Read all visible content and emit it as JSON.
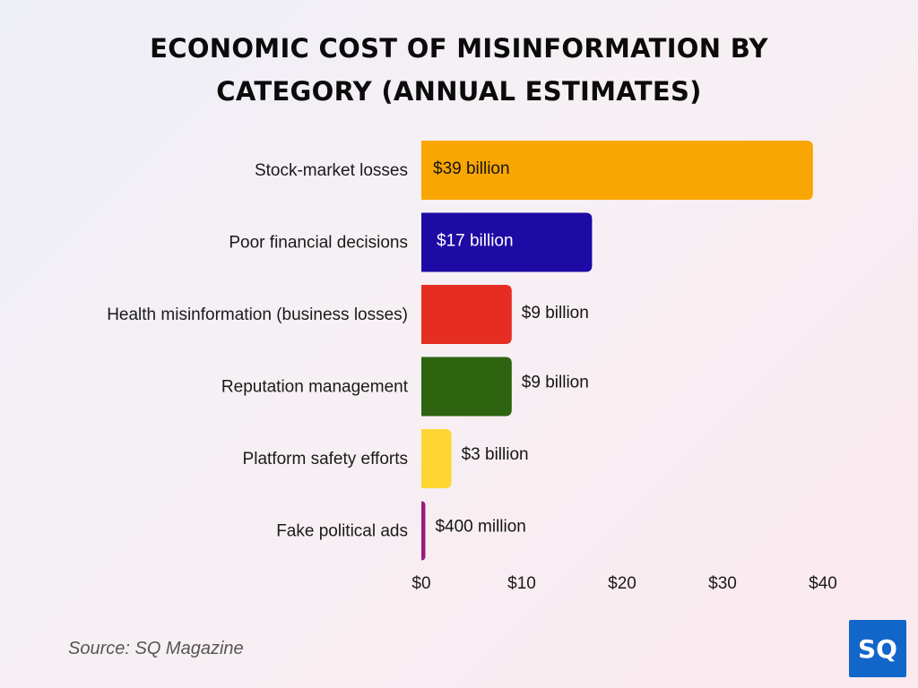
{
  "title": "ECONOMIC COST OF MISINFORMATION BY CATEGORY (ANNUAL ESTIMATES)",
  "source": "Source: SQ Magazine",
  "logo_text": "SQ",
  "colors": {
    "logo": "#1266c9"
  },
  "chart_data": {
    "type": "bar",
    "orientation": "horizontal",
    "categories": [
      "Stock-market losses",
      "Poor financial decisions",
      "Health misinformation (business losses)",
      "Reputation management",
      "Platform safety efforts",
      "Fake political ads"
    ],
    "values": [
      39,
      17,
      9,
      9,
      3,
      0.4
    ],
    "data_labels": [
      "$39 billion",
      "$17 billion",
      "$9 billion",
      "$9 billion",
      "$3 billion",
      "$400 million"
    ],
    "colors": [
      "#f9a602",
      "#1e0aa5",
      "#e52d22",
      "#2e6310",
      "#fdd631",
      "#9b1b7e"
    ],
    "label_inside": [
      true,
      true,
      false,
      false,
      false,
      false
    ],
    "x_ticks": [
      "$0",
      "$10",
      "$20",
      "$30",
      "$40"
    ],
    "x_tick_values": [
      0,
      10,
      20,
      30,
      40
    ],
    "xlim": [
      0,
      40
    ],
    "xlabel": "",
    "ylabel": "",
    "grid": false,
    "legend": "none"
  }
}
